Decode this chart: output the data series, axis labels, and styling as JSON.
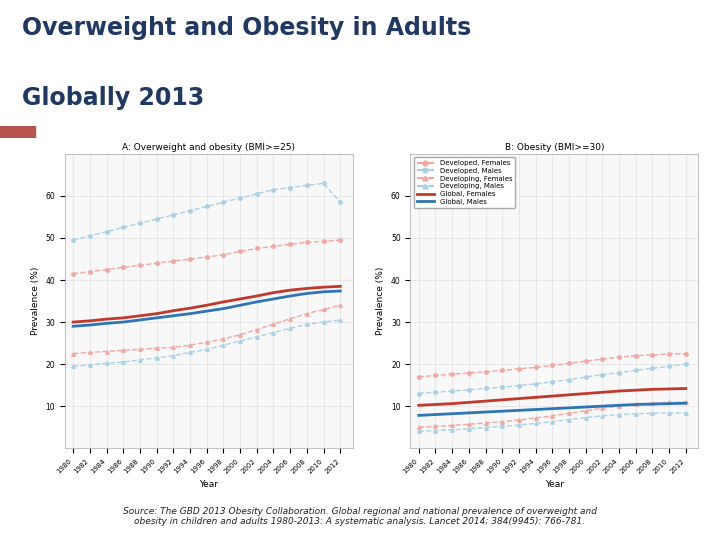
{
  "title_line1": "Overweight and Obesity in Adults",
  "title_line2": "Globally 2013",
  "title_color": "#1F3864",
  "source_text": "Source: The GBD 2013 Obesity Collaboration. Global regional and national prevalence of overweight and\nobesity in children and adults 1980-2013: A systematic analysis. Lancet 2014; 384(9945): 766-781.",
  "banner_color": "#5B8DB8",
  "banner_left_color": "#B85450",
  "years": [
    1980,
    1982,
    1984,
    1986,
    1988,
    1990,
    1992,
    1994,
    1996,
    1998,
    2000,
    2002,
    2004,
    2006,
    2008,
    2010,
    2012
  ],
  "plot_A": {
    "title": "A: Overweight and obesity (BMI>=25)",
    "ylabel": "Prevalence (%)",
    "xlabel": "Year",
    "ylim": [
      0,
      70
    ],
    "yticks": [
      10,
      20,
      30,
      40,
      50,
      60
    ],
    "developed_females": [
      41.5,
      42.0,
      42.5,
      43.0,
      43.5,
      44.0,
      44.5,
      45.0,
      45.5,
      46.0,
      46.8,
      47.5,
      48.0,
      48.5,
      49.0,
      49.2,
      49.5
    ],
    "developed_males": [
      49.5,
      50.5,
      51.5,
      52.5,
      53.5,
      54.5,
      55.5,
      56.5,
      57.5,
      58.5,
      59.5,
      60.5,
      61.5,
      62.0,
      62.5,
      63.0,
      58.5
    ],
    "developing_females": [
      22.5,
      22.8,
      23.0,
      23.3,
      23.5,
      23.8,
      24.0,
      24.5,
      25.2,
      26.0,
      27.0,
      28.2,
      29.5,
      30.8,
      32.0,
      33.0,
      34.0
    ],
    "developing_males": [
      19.5,
      19.8,
      20.2,
      20.5,
      21.0,
      21.5,
      22.0,
      22.8,
      23.5,
      24.5,
      25.5,
      26.5,
      27.5,
      28.5,
      29.5,
      30.0,
      30.5
    ],
    "global_females": [
      30.0,
      30.3,
      30.7,
      31.0,
      31.5,
      32.0,
      32.7,
      33.3,
      34.0,
      34.8,
      35.5,
      36.2,
      37.0,
      37.6,
      38.0,
      38.3,
      38.5
    ],
    "global_males": [
      29.0,
      29.3,
      29.7,
      30.0,
      30.5,
      31.0,
      31.5,
      32.0,
      32.6,
      33.2,
      34.0,
      34.8,
      35.5,
      36.2,
      36.8,
      37.2,
      37.4
    ]
  },
  "plot_B": {
    "title": "B: Obesity (BMI>=30)",
    "ylabel": "Prevalence (%)",
    "xlabel": "Year",
    "ylim": [
      0,
      70
    ],
    "yticks": [
      10,
      20,
      30,
      40,
      50,
      60
    ],
    "developed_females": [
      17.0,
      17.3,
      17.6,
      17.9,
      18.2,
      18.5,
      18.9,
      19.2,
      19.7,
      20.2,
      20.7,
      21.2,
      21.7,
      22.0,
      22.2,
      22.4,
      22.5
    ],
    "developed_males": [
      13.0,
      13.3,
      13.6,
      13.9,
      14.2,
      14.5,
      14.9,
      15.3,
      15.8,
      16.3,
      16.9,
      17.5,
      18.0,
      18.5,
      19.0,
      19.5,
      20.0
    ],
    "developing_females": [
      5.0,
      5.2,
      5.4,
      5.7,
      6.0,
      6.3,
      6.7,
      7.2,
      7.7,
      8.3,
      8.9,
      9.5,
      10.0,
      10.4,
      10.7,
      10.9,
      11.0
    ],
    "developing_males": [
      4.0,
      4.2,
      4.4,
      4.6,
      4.9,
      5.2,
      5.5,
      5.9,
      6.3,
      6.8,
      7.3,
      7.7,
      8.0,
      8.2,
      8.3,
      8.4,
      8.4
    ],
    "global_females": [
      10.2,
      10.4,
      10.6,
      10.9,
      11.2,
      11.5,
      11.8,
      12.1,
      12.4,
      12.7,
      13.0,
      13.3,
      13.6,
      13.8,
      14.0,
      14.1,
      14.2
    ],
    "global_males": [
      7.8,
      8.0,
      8.2,
      8.4,
      8.6,
      8.8,
      9.0,
      9.2,
      9.4,
      9.6,
      9.8,
      10.0,
      10.2,
      10.4,
      10.5,
      10.6,
      10.7
    ]
  },
  "color_red": "#F4A6A2",
  "color_blue": "#A8D1E7",
  "color_dark_red": "#C0392B",
  "color_dark_blue": "#2E75B6",
  "bg_color": "#FFFFFF",
  "plot_bg": "#F8F8F8",
  "grid_color": "#E0E0E0"
}
